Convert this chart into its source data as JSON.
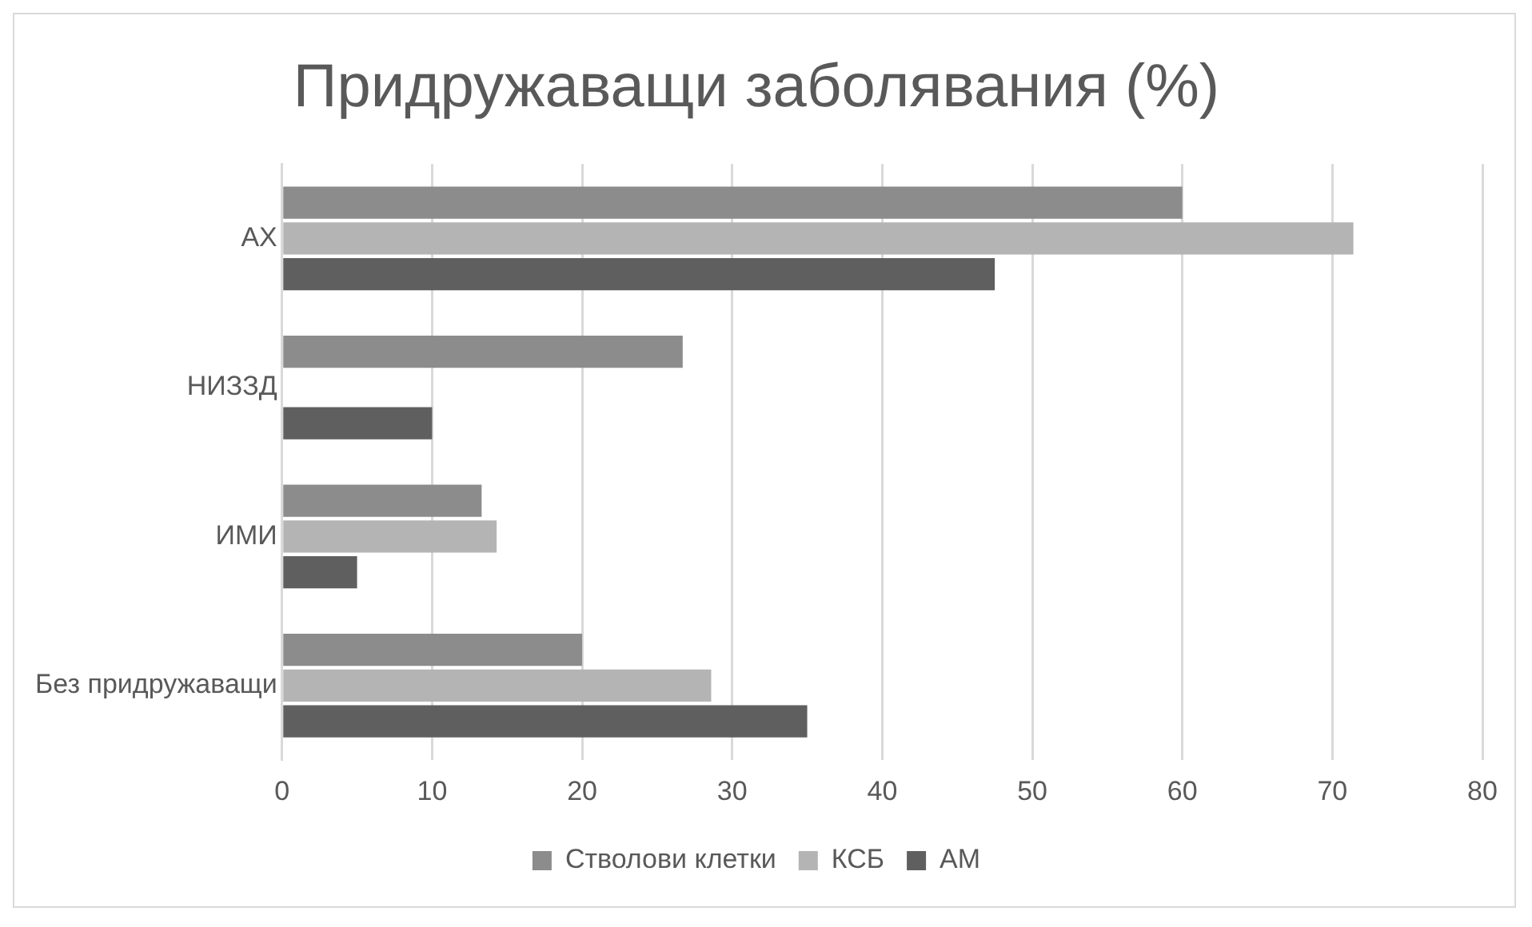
{
  "chart_data": {
    "type": "bar",
    "orientation": "horizontal",
    "title": "Придружаващи заболявания (%)",
    "categories": [
      "АХ",
      "НИЗЗД",
      "ИМИ",
      "Без придружаващи"
    ],
    "series": [
      {
        "name": "Стволови клетки",
        "color": "#8c8c8c",
        "values": [
          60,
          26.7,
          13.3,
          20
        ]
      },
      {
        "name": "КСБ",
        "color": "#b4b4b4",
        "values": [
          71.4,
          0,
          14.3,
          28.6
        ]
      },
      {
        "name": "АМ",
        "color": "#5f5f5f",
        "values": [
          47.5,
          10,
          5,
          35
        ]
      }
    ],
    "xlim": [
      0,
      80
    ],
    "xticks": [
      0,
      10,
      20,
      30,
      40,
      50,
      60,
      70,
      80
    ],
    "grid": "x",
    "legend": "bottom"
  }
}
